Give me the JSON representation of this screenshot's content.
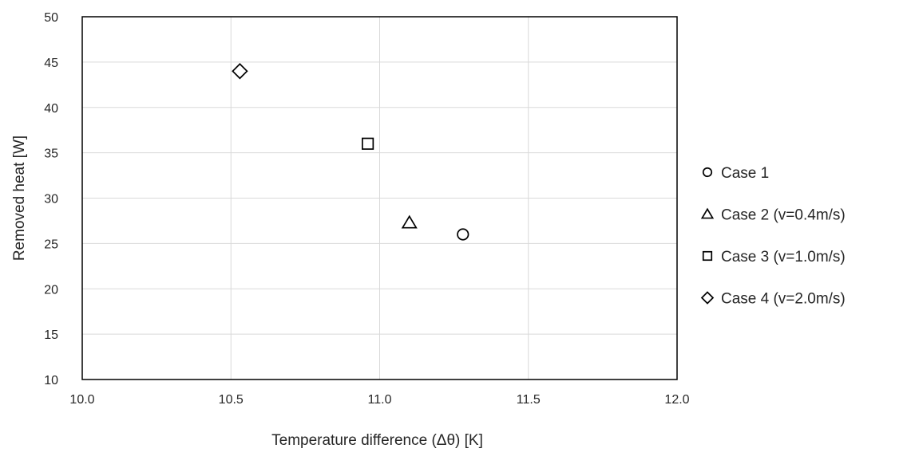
{
  "chart_data": {
    "type": "scatter",
    "title": "",
    "xlabel": "Temperature difference (Δθ) [K]",
    "ylabel": "Removed heat [W]",
    "xlim": [
      10.0,
      12.0
    ],
    "ylim": [
      10,
      50
    ],
    "x_ticks": [
      "10.0",
      "10.5",
      "11.0",
      "11.5",
      "12.0"
    ],
    "y_ticks": [
      "10",
      "15",
      "20",
      "25",
      "30",
      "35",
      "40",
      "45",
      "50"
    ],
    "grid": "vertical and horizontal",
    "legend_position": "right",
    "series": [
      {
        "name": "Case 1",
        "marker": "circle",
        "x": [
          11.28
        ],
        "y": [
          26.0
        ]
      },
      {
        "name": "Case 2 (v=0.4m/s)",
        "marker": "triangle",
        "x": [
          11.1
        ],
        "y": [
          27.3
        ]
      },
      {
        "name": "Case 3 (v=1.0m/s)",
        "marker": "square",
        "x": [
          10.96
        ],
        "y": [
          36.0
        ]
      },
      {
        "name": "Case 4 (v=2.0m/s)",
        "marker": "diamond",
        "x": [
          10.53
        ],
        "y": [
          44.0
        ]
      }
    ],
    "colors": {
      "axis": "#000000",
      "grid": "#d9d9d9",
      "marker": "#000000"
    }
  }
}
